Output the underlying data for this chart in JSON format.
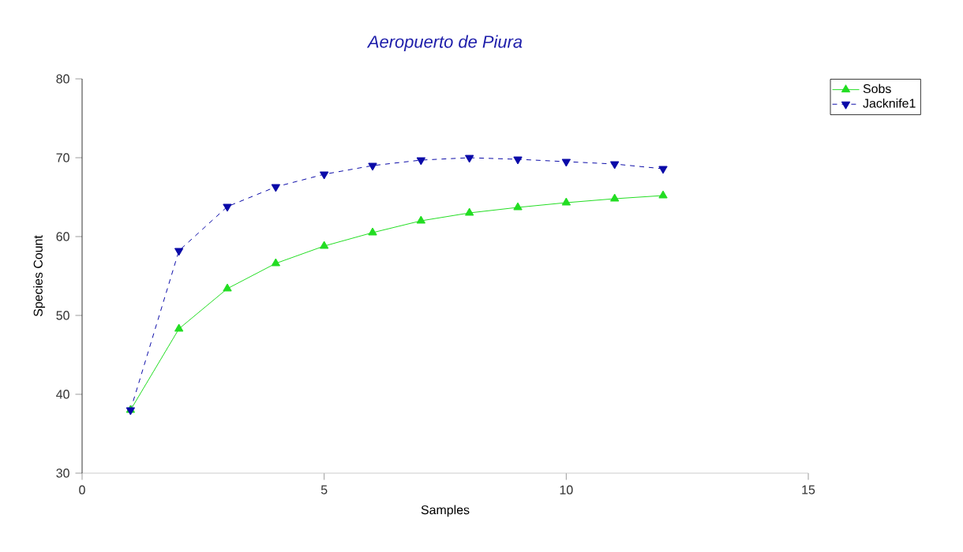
{
  "chart_data": {
    "type": "line",
    "title": "Aeropuerto de Piura",
    "xlabel": "Samples",
    "ylabel": "Species Count",
    "x": [
      1,
      2,
      3,
      4,
      5,
      6,
      7,
      8,
      9,
      10,
      11,
      12
    ],
    "series": [
      {
        "name": "Sobs",
        "color": "#22dd22",
        "marker": "triangle",
        "line_style": "solid",
        "values": [
          38,
          48.3,
          53.4,
          56.6,
          58.8,
          60.5,
          62,
          63,
          63.7,
          64.3,
          64.8,
          65.2
        ]
      },
      {
        "name": "Jacknife1",
        "color": "#0a0aa8",
        "marker": "triangle-down",
        "line_style": "dashed",
        "values": [
          38,
          58.2,
          63.8,
          66.3,
          67.9,
          69,
          69.7,
          70,
          69.8,
          69.5,
          69.2,
          68.6
        ]
      }
    ],
    "xlim": [
      0,
      15
    ],
    "ylim": [
      30,
      80
    ],
    "xticks": [
      0,
      5,
      10,
      15
    ],
    "yticks": [
      30,
      40,
      50,
      60,
      70,
      80
    ],
    "grid": false,
    "legend": "top right"
  }
}
